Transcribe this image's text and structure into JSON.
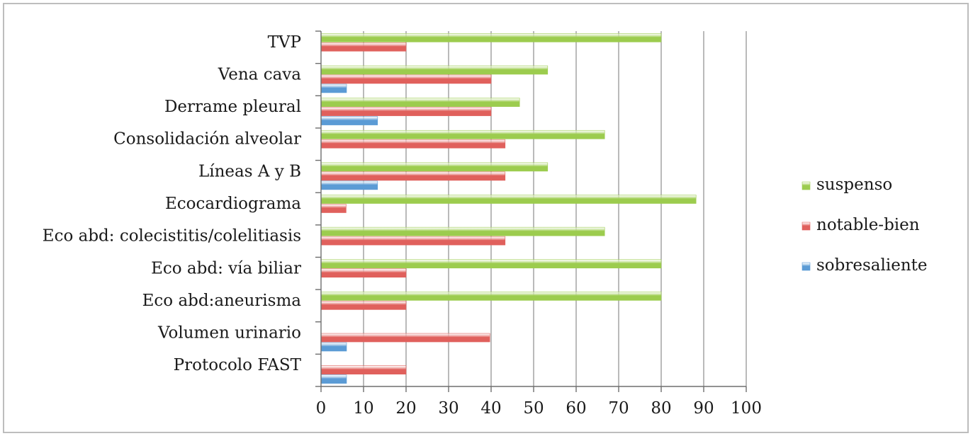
{
  "chart_data": {
    "type": "bar",
    "orientation": "horizontal",
    "categories": [
      "TVP",
      "Vena cava",
      "Derrame pleural",
      "Consolidación alveolar",
      "Líneas A y B",
      "Ecocardiograma",
      "Eco abd: colecistitis/colelitiasis",
      "Eco abd: vía biliar",
      "Eco abd:aneurisma",
      "Volumen urinario",
      "Protocolo FAST"
    ],
    "series": [
      {
        "name": "suspenso",
        "color": "#9ccc4e",
        "values": [
          80,
          53.3,
          46.7,
          66.7,
          53.3,
          88.2,
          66.7,
          80,
          80,
          0,
          0
        ]
      },
      {
        "name": "notable-bien",
        "color": "#e0605c",
        "values": [
          20,
          40,
          40,
          43.3,
          43.3,
          5.9,
          43.3,
          20,
          20,
          39.7,
          20
        ]
      },
      {
        "name": "sobresaliente",
        "color": "#5b9bd5",
        "values": [
          0,
          6,
          13.3,
          0,
          13.3,
          0,
          0,
          0,
          0,
          6,
          6
        ]
      }
    ],
    "xlim": [
      0,
      100
    ],
    "xticks": [
      "0",
      "10",
      "20",
      "30",
      "40",
      "50",
      "60",
      "70",
      "80",
      "90",
      "100"
    ],
    "grid": true,
    "legend_position": "right",
    "title": "",
    "xlabel": "",
    "ylabel": ""
  }
}
